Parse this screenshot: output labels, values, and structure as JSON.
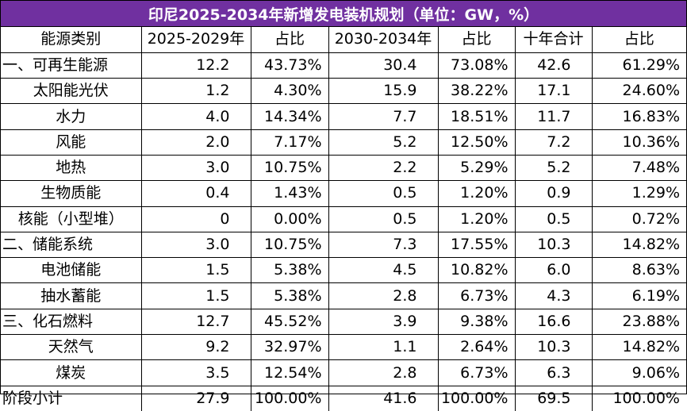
{
  "title": "印尼2025-2034年新增发电装机规划（单位：GW，%）",
  "header": [
    "能源类别",
    "2025-2029年",
    "占比",
    "2030-2034年",
    "占比",
    "十年合计",
    "占比"
  ],
  "rows": [
    {
      "name": "一、可再生能源",
      "indent": false,
      "v1": "12.2",
      "p1": "43.73%",
      "v2": "30.4",
      "p2": "73.08%",
      "v3": "42.6",
      "p3": "61.29%"
    },
    {
      "name": "太阳能光伏",
      "indent": true,
      "v1": "1.2",
      "p1": "4.30%",
      "v2": "15.9",
      "p2": "38.22%",
      "v3": "17.1",
      "p3": "24.60%"
    },
    {
      "name": "水力",
      "indent": true,
      "v1": "4.0",
      "p1": "14.34%",
      "v2": "7.7",
      "p2": "18.51%",
      "v3": "11.7",
      "p3": "16.83%"
    },
    {
      "name": "风能",
      "indent": true,
      "v1": "2.0",
      "p1": "7.17%",
      "v2": "5.2",
      "p2": "12.50%",
      "v3": "7.2",
      "p3": "10.36%"
    },
    {
      "name": "地热",
      "indent": true,
      "v1": "3.0",
      "p1": "10.75%",
      "v2": "2.2",
      "p2": "5.29%",
      "v3": "5.2",
      "p3": "7.48%"
    },
    {
      "name": "生物质能",
      "indent": true,
      "v1": "0.4",
      "p1": "1.43%",
      "v2": "0.5",
      "p2": "1.20%",
      "v3": "0.9",
      "p3": "1.29%"
    },
    {
      "name": "核能（小型堆）",
      "indent": true,
      "v1": "0",
      "p1": "0.00%",
      "v2": "0.5",
      "p2": "1.20%",
      "v3": "0.5",
      "p3": "0.72%"
    },
    {
      "name": "二、储能系统",
      "indent": false,
      "v1": "3.0",
      "p1": "10.75%",
      "v2": "7.3",
      "p2": "17.55%",
      "v3": "10.3",
      "p3": "14.82%"
    },
    {
      "name": "电池储能",
      "indent": true,
      "v1": "1.5",
      "p1": "5.38%",
      "v2": "4.5",
      "p2": "10.82%",
      "v3": "6.0",
      "p3": "8.63%"
    },
    {
      "name": "抽水蓄能",
      "indent": true,
      "v1": "1.5",
      "p1": "5.38%",
      "v2": "2.8",
      "p2": "6.73%",
      "v3": "4.3",
      "p3": "6.19%"
    },
    {
      "name": "三、化石燃料",
      "indent": false,
      "v1": "12.7",
      "p1": "45.52%",
      "v2": "3.9",
      "p2": "9.38%",
      "v3": "16.6",
      "p3": "23.88%"
    },
    {
      "name": "天然气",
      "indent": true,
      "v1": "9.2",
      "p1": "32.97%",
      "v2": "1.1",
      "p2": "2.64%",
      "v3": "10.3",
      "p3": "14.82%"
    },
    {
      "name": "煤炭",
      "indent": true,
      "v1": "3.5",
      "p1": "12.54%",
      "v2": "2.8",
      "p2": "6.73%",
      "v3": "6.3",
      "p3": "9.06%"
    },
    {
      "name": "阶段小计",
      "indent": false,
      "v1": "27.9",
      "p1": "100.00%",
      "v2": "41.6",
      "p2": "100.00%",
      "v3": "69.5",
      "p3": "100.00%"
    }
  ]
}
